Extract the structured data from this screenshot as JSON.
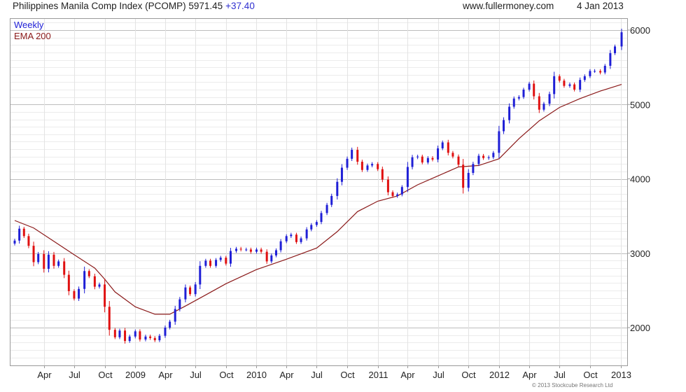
{
  "header": {
    "title": "Philippines Manila Comp Index (PCOMP) 5971.45",
    "change": "+37.40",
    "site": "www.fullermoney.com",
    "date": "4 Jan 2013"
  },
  "copyright": "© 2013 Stockcube Research Ltd",
  "colors": {
    "up": "#1f1fd6",
    "down": "#e01010",
    "ema": "#8b1a1a",
    "grid": "#e3e3e3",
    "frame": "#9a9a9a",
    "text": "#222222"
  },
  "chart_data": {
    "type": "line",
    "title": "Philippines Manila Comp Index (PCOMP) 5971.45 +37.40",
    "frequency_label": "Weekly",
    "y_axis_position": "right",
    "ylim": [
      1500,
      6200
    ],
    "y_ticks": [
      2000,
      3000,
      4000,
      5000,
      6000
    ],
    "x_range": [
      "2008-01-04",
      "2013-01-04"
    ],
    "x_ticks": [
      {
        "label": "Apr",
        "date": "2008-04-01"
      },
      {
        "label": "Jul",
        "date": "2008-07-01"
      },
      {
        "label": "Oct",
        "date": "2008-10-01"
      },
      {
        "label": "2009",
        "date": "2009-01-01"
      },
      {
        "label": "Apr",
        "date": "2009-04-01"
      },
      {
        "label": "Jul",
        "date": "2009-07-01"
      },
      {
        "label": "Oct",
        "date": "2009-10-01"
      },
      {
        "label": "2010",
        "date": "2010-01-01"
      },
      {
        "label": "Apr",
        "date": "2010-04-01"
      },
      {
        "label": "Jul",
        "date": "2010-07-01"
      },
      {
        "label": "Oct",
        "date": "2010-10-01"
      },
      {
        "label": "2011",
        "date": "2011-01-01"
      },
      {
        "label": "Apr",
        "date": "2011-04-01"
      },
      {
        "label": "Jul",
        "date": "2011-07-01"
      },
      {
        "label": "Oct",
        "date": "2011-10-01"
      },
      {
        "label": "2012",
        "date": "2012-01-01"
      },
      {
        "label": "Apr",
        "date": "2012-04-01"
      },
      {
        "label": "Jul",
        "date": "2012-07-01"
      },
      {
        "label": "Oct",
        "date": "2012-10-01"
      },
      {
        "label": "2013",
        "date": "2013-01-01"
      }
    ],
    "grid": true,
    "legend": "top-left",
    "series": [
      {
        "name": "Weekly",
        "style": "candlestick",
        "points": [
          [
            "2008-01-04",
            3170
          ],
          [
            "2008-01-18",
            3330
          ],
          [
            "2008-02-01",
            3230
          ],
          [
            "2008-02-15",
            3100
          ],
          [
            "2008-03-01",
            2880
          ],
          [
            "2008-03-15",
            2990
          ],
          [
            "2008-04-01",
            2790
          ],
          [
            "2008-04-15",
            2980
          ],
          [
            "2008-05-01",
            2830
          ],
          [
            "2008-05-15",
            2890
          ],
          [
            "2008-06-01",
            2710
          ],
          [
            "2008-06-15",
            2490
          ],
          [
            "2008-07-01",
            2390
          ],
          [
            "2008-07-15",
            2520
          ],
          [
            "2008-08-01",
            2760
          ],
          [
            "2008-08-15",
            2690
          ],
          [
            "2008-09-01",
            2550
          ],
          [
            "2008-09-15",
            2580
          ],
          [
            "2008-10-01",
            2280
          ],
          [
            "2008-10-15",
            1970
          ],
          [
            "2008-11-01",
            1870
          ],
          [
            "2008-11-15",
            1960
          ],
          [
            "2008-12-01",
            1820
          ],
          [
            "2008-12-15",
            1880
          ],
          [
            "2009-01-01",
            1950
          ],
          [
            "2009-01-15",
            1840
          ],
          [
            "2009-02-01",
            1880
          ],
          [
            "2009-02-15",
            1860
          ],
          [
            "2009-03-01",
            1830
          ],
          [
            "2009-03-15",
            1890
          ],
          [
            "2009-04-01",
            2000
          ],
          [
            "2009-04-15",
            2080
          ],
          [
            "2009-05-01",
            2250
          ],
          [
            "2009-05-15",
            2380
          ],
          [
            "2009-06-01",
            2540
          ],
          [
            "2009-06-15",
            2450
          ],
          [
            "2009-07-01",
            2580
          ],
          [
            "2009-07-15",
            2830
          ],
          [
            "2009-08-01",
            2900
          ],
          [
            "2009-08-15",
            2830
          ],
          [
            "2009-09-01",
            2910
          ],
          [
            "2009-09-15",
            2940
          ],
          [
            "2009-10-01",
            2860
          ],
          [
            "2009-10-15",
            3030
          ],
          [
            "2009-11-01",
            3060
          ],
          [
            "2009-11-15",
            3050
          ],
          [
            "2009-12-01",
            3050
          ],
          [
            "2009-12-15",
            3020
          ],
          [
            "2010-01-01",
            3050
          ],
          [
            "2010-01-15",
            3020
          ],
          [
            "2010-02-01",
            2890
          ],
          [
            "2010-02-15",
            2970
          ],
          [
            "2010-03-01",
            3040
          ],
          [
            "2010-03-15",
            3160
          ],
          [
            "2010-04-01",
            3230
          ],
          [
            "2010-04-15",
            3250
          ],
          [
            "2010-05-01",
            3150
          ],
          [
            "2010-05-15",
            3200
          ],
          [
            "2010-06-01",
            3320
          ],
          [
            "2010-06-15",
            3380
          ],
          [
            "2010-07-01",
            3420
          ],
          [
            "2010-07-15",
            3540
          ],
          [
            "2010-08-01",
            3650
          ],
          [
            "2010-08-15",
            3770
          ],
          [
            "2010-09-01",
            3960
          ],
          [
            "2010-09-15",
            4150
          ],
          [
            "2010-10-01",
            4270
          ],
          [
            "2010-10-15",
            4390
          ],
          [
            "2010-11-01",
            4230
          ],
          [
            "2010-11-15",
            4120
          ],
          [
            "2010-12-01",
            4180
          ],
          [
            "2010-12-15",
            4200
          ],
          [
            "2011-01-01",
            4130
          ],
          [
            "2011-01-15",
            3990
          ],
          [
            "2011-02-01",
            3820
          ],
          [
            "2011-02-15",
            3770
          ],
          [
            "2011-03-01",
            3790
          ],
          [
            "2011-03-15",
            3890
          ],
          [
            "2011-04-01",
            4160
          ],
          [
            "2011-04-15",
            4290
          ],
          [
            "2011-05-01",
            4300
          ],
          [
            "2011-05-15",
            4220
          ],
          [
            "2011-06-01",
            4280
          ],
          [
            "2011-06-15",
            4260
          ],
          [
            "2011-07-01",
            4410
          ],
          [
            "2011-07-15",
            4490
          ],
          [
            "2011-08-01",
            4350
          ],
          [
            "2011-08-15",
            4300
          ],
          [
            "2011-09-01",
            4190
          ],
          [
            "2011-09-15",
            3880
          ],
          [
            "2011-10-01",
            4080
          ],
          [
            "2011-10-15",
            4200
          ],
          [
            "2011-11-01",
            4310
          ],
          [
            "2011-11-15",
            4280
          ],
          [
            "2011-12-01",
            4290
          ],
          [
            "2011-12-15",
            4350
          ],
          [
            "2012-01-01",
            4640
          ],
          [
            "2012-01-15",
            4790
          ],
          [
            "2012-02-01",
            4970
          ],
          [
            "2012-02-15",
            5080
          ],
          [
            "2012-03-01",
            5100
          ],
          [
            "2012-03-15",
            5200
          ],
          [
            "2012-04-01",
            5280
          ],
          [
            "2012-04-15",
            5110
          ],
          [
            "2012-05-01",
            4930
          ],
          [
            "2012-05-15",
            5010
          ],
          [
            "2012-06-01",
            5140
          ],
          [
            "2012-06-15",
            5380
          ],
          [
            "2012-07-01",
            5320
          ],
          [
            "2012-07-15",
            5250
          ],
          [
            "2012-08-01",
            5270
          ],
          [
            "2012-08-15",
            5200
          ],
          [
            "2012-09-01",
            5330
          ],
          [
            "2012-09-15",
            5380
          ],
          [
            "2012-10-01",
            5450
          ],
          [
            "2012-10-15",
            5450
          ],
          [
            "2012-11-01",
            5430
          ],
          [
            "2012-11-15",
            5520
          ],
          [
            "2012-12-01",
            5690
          ],
          [
            "2012-12-15",
            5780
          ],
          [
            "2013-01-04",
            5971
          ]
        ]
      },
      {
        "name": "EMA 200",
        "style": "line",
        "points": [
          [
            "2008-01-04",
            3440
          ],
          [
            "2008-03-01",
            3340
          ],
          [
            "2008-05-01",
            3160
          ],
          [
            "2008-07-01",
            2980
          ],
          [
            "2008-09-01",
            2800
          ],
          [
            "2008-10-01",
            2650
          ],
          [
            "2008-11-01",
            2480
          ],
          [
            "2009-01-01",
            2280
          ],
          [
            "2009-03-01",
            2180
          ],
          [
            "2009-04-15",
            2180
          ],
          [
            "2009-06-01",
            2290
          ],
          [
            "2009-08-01",
            2440
          ],
          [
            "2009-10-01",
            2590
          ],
          [
            "2010-01-01",
            2780
          ],
          [
            "2010-04-01",
            2920
          ],
          [
            "2010-07-01",
            3070
          ],
          [
            "2010-09-01",
            3290
          ],
          [
            "2010-11-01",
            3560
          ],
          [
            "2011-01-01",
            3700
          ],
          [
            "2011-03-01",
            3770
          ],
          [
            "2011-05-01",
            3920
          ],
          [
            "2011-07-01",
            4040
          ],
          [
            "2011-09-01",
            4160
          ],
          [
            "2011-11-01",
            4180
          ],
          [
            "2012-01-01",
            4270
          ],
          [
            "2012-03-01",
            4540
          ],
          [
            "2012-05-01",
            4780
          ],
          [
            "2012-07-01",
            4960
          ],
          [
            "2012-09-01",
            5080
          ],
          [
            "2012-11-01",
            5180
          ],
          [
            "2013-01-04",
            5270
          ]
        ]
      }
    ]
  }
}
